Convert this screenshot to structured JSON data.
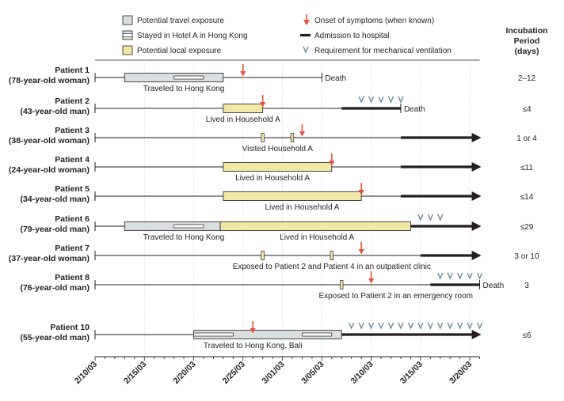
{
  "legend": {
    "travel": "Potential travel exposure",
    "hotel": "Stayed in Hotel A in Hong Kong",
    "local": "Potential local exposure",
    "onset": "Onset of symptoms (when known)",
    "admission": "Admission to hospital",
    "ventilation": "Requirement for mechanical ventilation"
  },
  "incubation_header": [
    "Incubation",
    "Period",
    "(days)"
  ],
  "colors": {
    "travel": "#d9dedf",
    "local": "#f3e7a6",
    "onset": "#e8513a",
    "vent": "#6d8a9a",
    "line": "#231f20",
    "grid": "#cccccc"
  },
  "axis": {
    "ticks": [
      {
        "day": 0,
        "label": "2/10/03"
      },
      {
        "day": 5,
        "label": "2/15/03"
      },
      {
        "day": 10,
        "label": "2/20/03"
      },
      {
        "day": 15,
        "label": "2/25/03"
      },
      {
        "day": 19,
        "label": "3/01/03"
      },
      {
        "day": 23,
        "label": "3/05/03"
      },
      {
        "day": 28,
        "label": "3/10/03"
      },
      {
        "day": 33,
        "label": "3/15/03"
      },
      {
        "day": 38,
        "label": "3/20/03"
      }
    ]
  },
  "patients": [
    {
      "name": "Patient 1",
      "desc": "(78-year-old woman)",
      "incubation": "2–12",
      "end_day": 23,
      "arrow": false,
      "death": "Death",
      "bars": [
        {
          "kind": "travel",
          "start": 3,
          "end": 13
        }
      ],
      "hotel": [
        {
          "start": 8,
          "end": 11
        }
      ],
      "instants": [],
      "onset": [
        15
      ],
      "admission": null,
      "vent": [],
      "labels": [
        {
          "text": "Traveled to Hong Kong",
          "day": 9,
          "key": "p1_l1"
        }
      ]
    },
    {
      "name": "Patient 2",
      "desc": "(43-year-old man)",
      "incubation": "≤4",
      "end_day": 31,
      "arrow": false,
      "death": "Death",
      "bars": [
        {
          "kind": "local",
          "start": 13,
          "end": 17
        }
      ],
      "hotel": [],
      "instants": [],
      "onset": [
        17
      ],
      "admission": {
        "start": 25,
        "end": 31
      },
      "vent": [
        27,
        28,
        29,
        30,
        31
      ],
      "labels": [
        {
          "text": "Lived in Household A",
          "day": 15,
          "key": "p2_l1"
        }
      ]
    },
    {
      "name": "Patient 3",
      "desc": "(38-year-old woman)",
      "incubation": "1 or 4",
      "end_day": 39,
      "arrow": true,
      "death": "",
      "bars": [],
      "hotel": [],
      "instants": [
        17,
        20
      ],
      "onset": [
        21
      ],
      "admission": {
        "start": 31,
        "end": 39
      },
      "vent": [],
      "labels": [
        {
          "text": "Visited Household A",
          "day": 18.5,
          "key": "p3_l1"
        }
      ]
    },
    {
      "name": "Patient 4",
      "desc": "(24-year-old woman)",
      "incubation": "≤11",
      "end_day": 39,
      "arrow": true,
      "death": "",
      "bars": [
        {
          "kind": "local",
          "start": 13,
          "end": 24
        }
      ],
      "hotel": [],
      "instants": [],
      "onset": [
        24
      ],
      "admission": {
        "start": 31,
        "end": 39
      },
      "vent": [],
      "labels": [
        {
          "text": "Lived in Household A",
          "day": 18,
          "key": "p4_l1"
        }
      ]
    },
    {
      "name": "Patient 5",
      "desc": "(34-year-old man)",
      "incubation": "≤14",
      "end_day": 39,
      "arrow": true,
      "death": "",
      "bars": [
        {
          "kind": "local",
          "start": 13,
          "end": 27
        }
      ],
      "hotel": [],
      "instants": [],
      "onset": [
        27
      ],
      "admission": {
        "start": 31,
        "end": 39
      },
      "vent": [],
      "labels": [
        {
          "text": "Lived in Household A",
          "day": 21,
          "key": "p5_l1"
        }
      ]
    },
    {
      "name": "Patient 6",
      "desc": "(79-year-old man)",
      "incubation": "≤29",
      "end_day": 39,
      "arrow": true,
      "death": "",
      "bars": [
        {
          "kind": "travel",
          "start": 3,
          "end": 12.7
        },
        {
          "kind": "local",
          "start": 12.7,
          "end": 32
        }
      ],
      "hotel": [
        {
          "start": 8,
          "end": 11
        }
      ],
      "instants": [],
      "onset": [],
      "admission": {
        "start": 32,
        "end": 39
      },
      "vent": [
        33,
        34,
        35
      ],
      "labels": [
        {
          "text": "Traveled to Hong Kong",
          "day": 9,
          "key": "p6_l1"
        },
        {
          "text": "Lived in Household A",
          "day": 22.5,
          "key": "p6_l2"
        }
      ]
    },
    {
      "name": "Patient 7",
      "desc": "(37-year-old woman)",
      "incubation": "3 or 10",
      "end_day": 39,
      "arrow": true,
      "death": "",
      "bars": [],
      "hotel": [],
      "instants": [
        17,
        24
      ],
      "onset": [
        27
      ],
      "admission": {
        "start": 33,
        "end": 39
      },
      "vent": [],
      "labels": [
        {
          "text": "Exposed to Patient 2 and Patient 4 in an outpatient clinic",
          "day": 24,
          "key": "p7_l1"
        }
      ]
    },
    {
      "name": "Patient 8",
      "desc": "(76-year-old man)",
      "incubation": "3",
      "end_day": 39,
      "arrow": false,
      "death": "Death",
      "bars": [],
      "hotel": [],
      "instants": [
        25
      ],
      "onset": [
        28
      ],
      "admission": {
        "start": 34,
        "end": 39
      },
      "vent": [
        35,
        36,
        37,
        38,
        39
      ],
      "labels": [
        {
          "text": "Exposed to Patient 2 in an emergency room",
          "day": 30.5,
          "key": "p8_l1"
        }
      ]
    },
    {
      "name": "Patient 10",
      "desc": "(55-year-old man)",
      "incubation": "≤6",
      "end_day": 39,
      "arrow": true,
      "death": "",
      "bars": [
        {
          "kind": "travel",
          "start": 10,
          "end": 25
        }
      ],
      "hotel": [
        {
          "start": 10,
          "end": 14
        },
        {
          "start": 21,
          "end": 24
        }
      ],
      "instants": [],
      "onset": [
        16
      ],
      "admission": {
        "start": 25,
        "end": 39
      },
      "vent": [
        26,
        27,
        28,
        29,
        30,
        31,
        32,
        33,
        34,
        35,
        36,
        37,
        38,
        39
      ],
      "labels": [
        {
          "text": "Traveled to Hong Kong, Bali",
          "day": 16,
          "key": "p10_l1"
        }
      ]
    }
  ]
}
